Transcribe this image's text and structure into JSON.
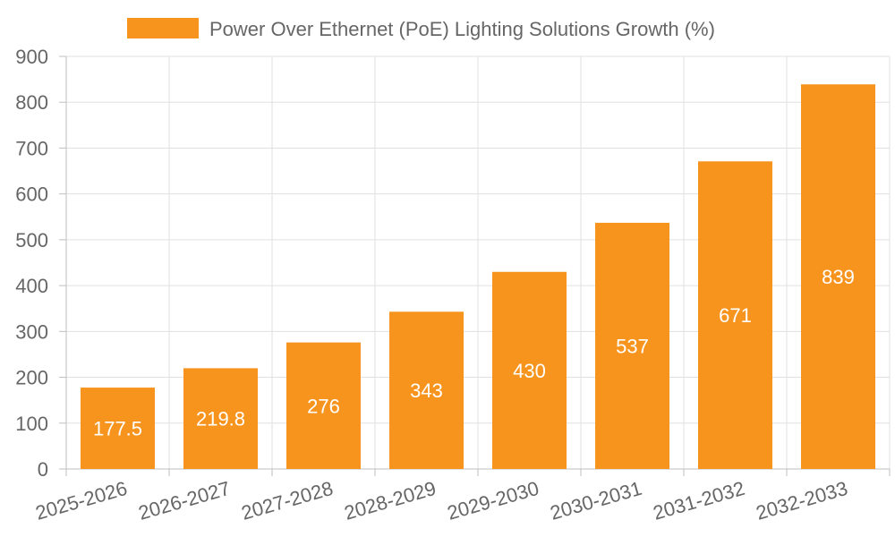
{
  "chart_data": {
    "type": "bar",
    "series": [
      {
        "name": "Power Over Ethernet (PoE) Lighting Solutions Growth (%)",
        "values": [
          177.5,
          219.8,
          276,
          343,
          430,
          537,
          671,
          839
        ]
      }
    ],
    "categories": [
      "2025-2026",
      "2026-2027",
      "2027-2028",
      "2028-2029",
      "2029-2030",
      "2030-2031",
      "2031-2032",
      "2032-2033"
    ],
    "data_labels": [
      "177.5",
      "219.8",
      "276",
      "343",
      "430",
      "537",
      "671",
      "839"
    ],
    "y_ticks": [
      "0",
      "100",
      "200",
      "300",
      "400",
      "500",
      "600",
      "700",
      "800",
      "900"
    ],
    "ylim": [
      0,
      900
    ],
    "grid": true,
    "legend_position": "top-center",
    "colors": {
      "bar": "#F7941E"
    }
  }
}
